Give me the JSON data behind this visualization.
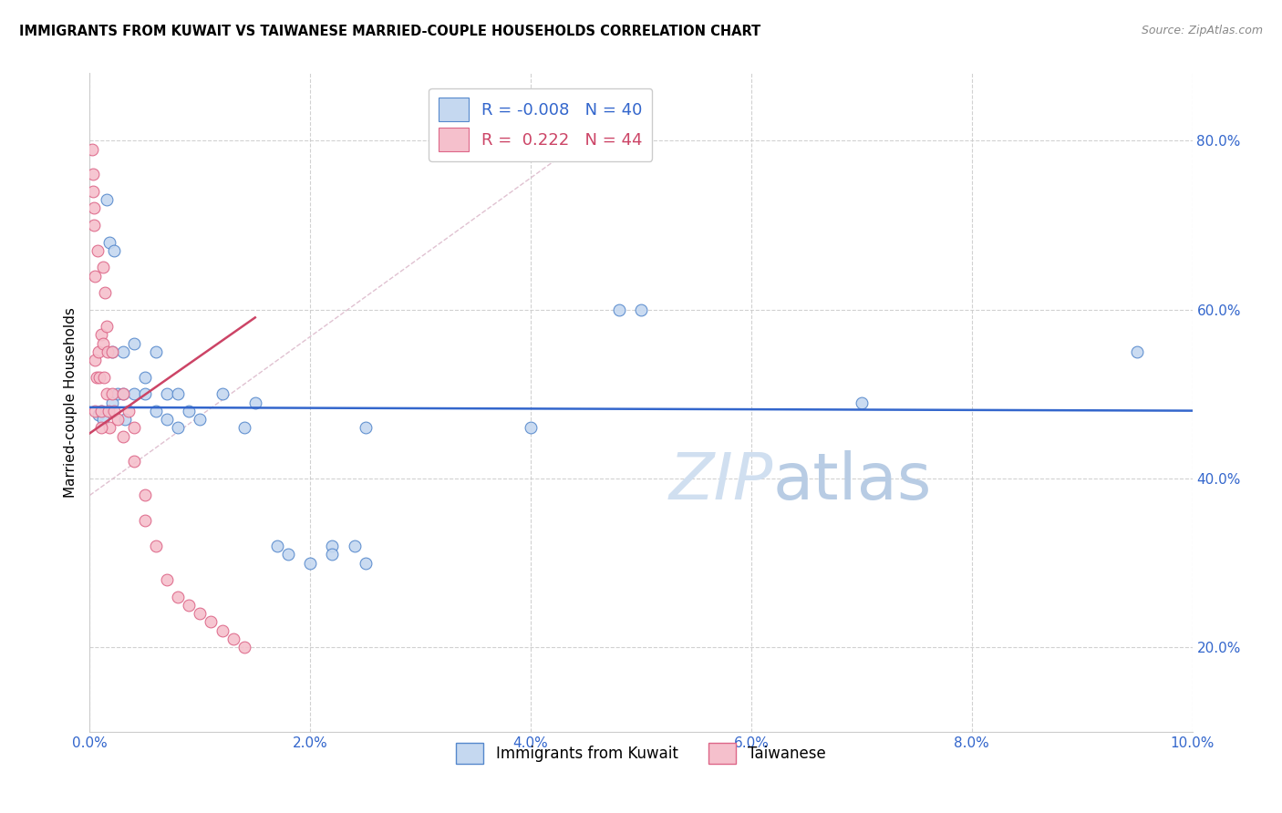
{
  "title": "IMMIGRANTS FROM KUWAIT VS TAIWANESE MARRIED-COUPLE HOUSEHOLDS CORRELATION CHART",
  "source": "Source: ZipAtlas.com",
  "ylabel": "Married-couple Households",
  "y_ticks": [
    0.2,
    0.4,
    0.6,
    0.8
  ],
  "y_tick_labels": [
    "20.0%",
    "40.0%",
    "60.0%",
    "80.0%"
  ],
  "x_ticks": [
    0.0,
    0.02,
    0.04,
    0.06,
    0.08,
    0.1
  ],
  "legend_blue_label": "Immigrants from Kuwait",
  "legend_pink_label": "Taiwanese",
  "R_blue": -0.008,
  "N_blue": 40,
  "R_pink": 0.222,
  "N_pink": 44,
  "blue_fill": "#c5d8f0",
  "pink_fill": "#f5c0cc",
  "blue_edge": "#5588cc",
  "pink_edge": "#dd6688",
  "blue_line_color": "#3366cc",
  "pink_line_color": "#cc4466",
  "diagonal_color": "#ddbbcc",
  "watermark_color": "#d0dff0",
  "blue_x": [
    0.0008,
    0.001,
    0.0012,
    0.0015,
    0.0018,
    0.002,
    0.002,
    0.0022,
    0.0025,
    0.003,
    0.003,
    0.0032,
    0.004,
    0.004,
    0.005,
    0.005,
    0.006,
    0.006,
    0.007,
    0.007,
    0.008,
    0.008,
    0.009,
    0.01,
    0.012,
    0.014,
    0.015,
    0.017,
    0.018,
    0.02,
    0.022,
    0.022,
    0.024,
    0.025,
    0.04,
    0.05,
    0.07,
    0.095,
    0.048,
    0.025
  ],
  "blue_y": [
    0.475,
    0.48,
    0.47,
    0.73,
    0.68,
    0.55,
    0.49,
    0.67,
    0.5,
    0.5,
    0.55,
    0.47,
    0.56,
    0.5,
    0.5,
    0.52,
    0.48,
    0.55,
    0.47,
    0.5,
    0.46,
    0.5,
    0.48,
    0.47,
    0.5,
    0.46,
    0.49,
    0.32,
    0.31,
    0.3,
    0.32,
    0.31,
    0.32,
    0.3,
    0.46,
    0.6,
    0.49,
    0.55,
    0.6,
    0.46
  ],
  "pink_x": [
    0.0002,
    0.0003,
    0.0004,
    0.0005,
    0.0005,
    0.0006,
    0.0007,
    0.0008,
    0.0009,
    0.001,
    0.001,
    0.0012,
    0.0012,
    0.0013,
    0.0014,
    0.0015,
    0.0015,
    0.0016,
    0.0017,
    0.0018,
    0.002,
    0.002,
    0.0022,
    0.0025,
    0.003,
    0.003,
    0.0035,
    0.004,
    0.004,
    0.005,
    0.005,
    0.006,
    0.007,
    0.008,
    0.009,
    0.01,
    0.011,
    0.012,
    0.013,
    0.014,
    0.0003,
    0.0004,
    0.0005,
    0.001
  ],
  "pink_y": [
    0.79,
    0.76,
    0.72,
    0.54,
    0.48,
    0.52,
    0.67,
    0.55,
    0.52,
    0.57,
    0.48,
    0.65,
    0.56,
    0.52,
    0.62,
    0.58,
    0.5,
    0.55,
    0.48,
    0.46,
    0.55,
    0.5,
    0.48,
    0.47,
    0.5,
    0.45,
    0.48,
    0.46,
    0.42,
    0.38,
    0.35,
    0.32,
    0.28,
    0.26,
    0.25,
    0.24,
    0.23,
    0.22,
    0.21,
    0.2,
    0.74,
    0.7,
    0.64,
    0.46
  ]
}
